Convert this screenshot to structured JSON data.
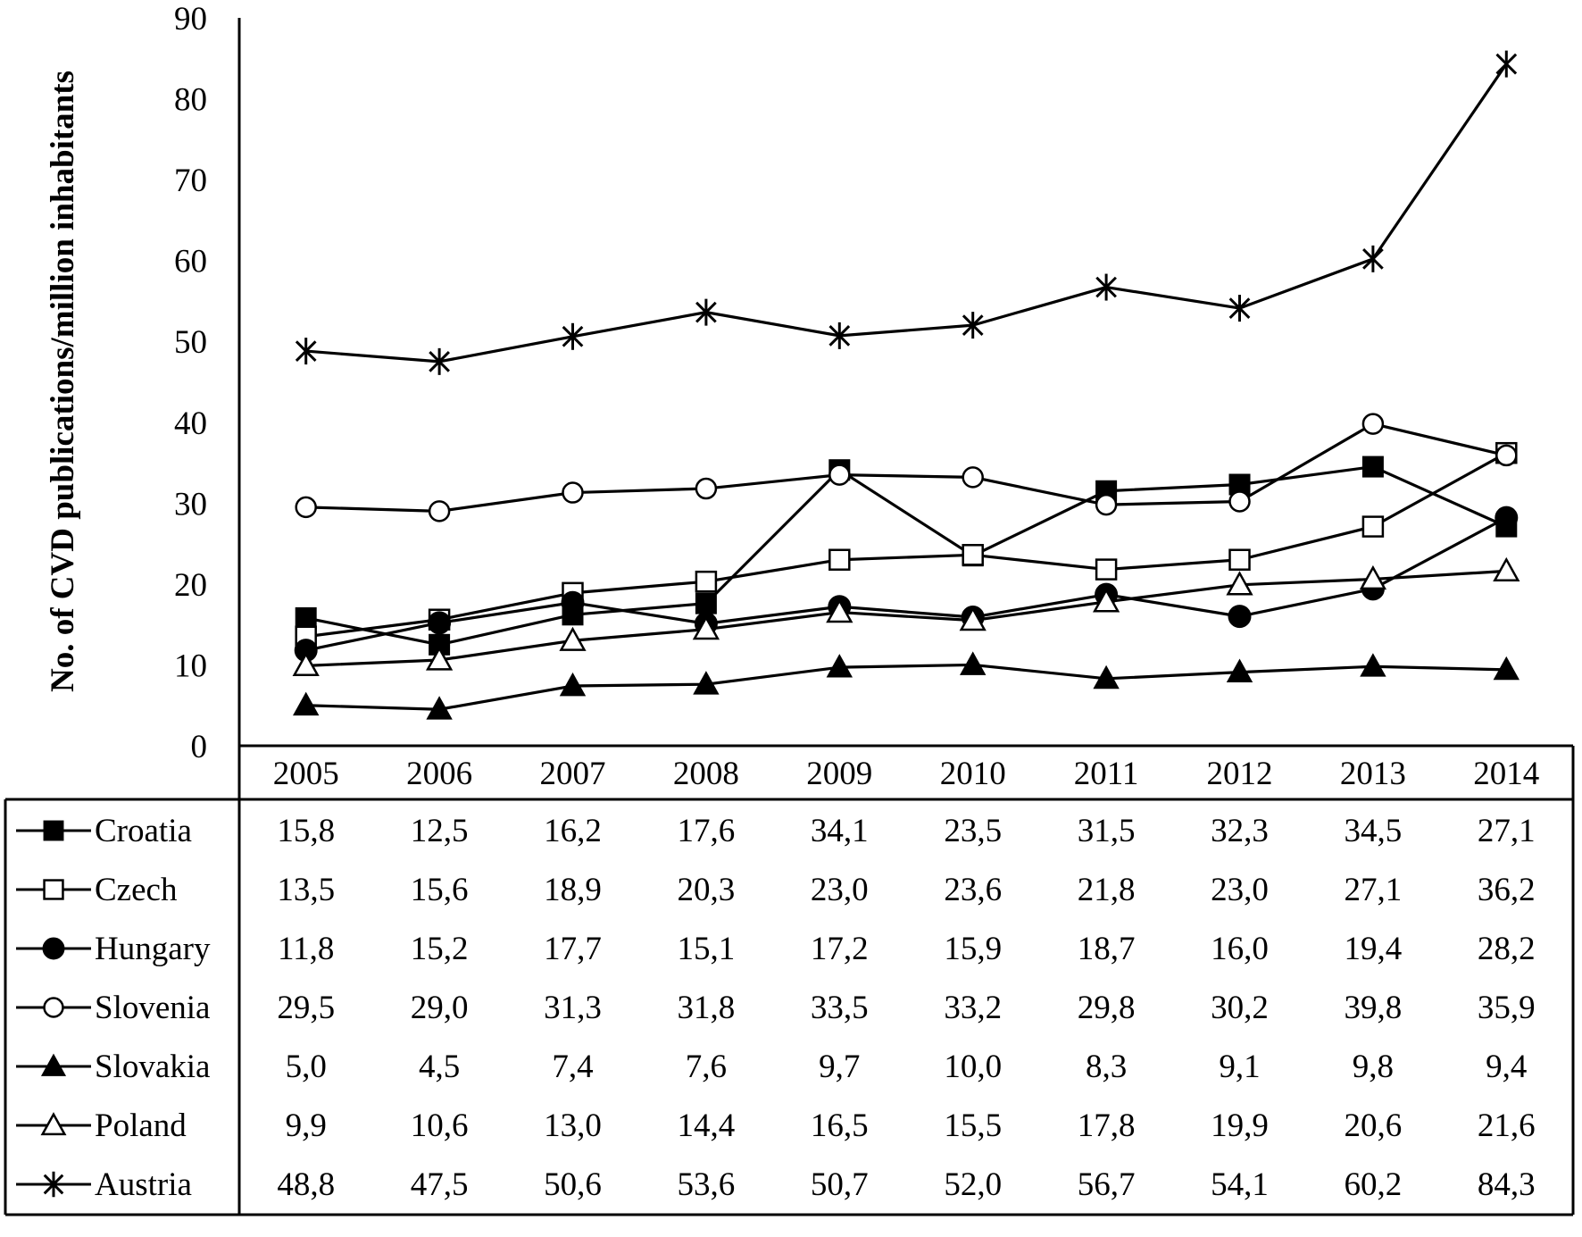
{
  "chart_data": {
    "type": "line",
    "title": "",
    "ylabel": "No. of CVD publications/million inhabitants",
    "xlabel": "",
    "ylim": [
      0,
      90
    ],
    "yticks": [
      0,
      10,
      20,
      30,
      40,
      50,
      60,
      70,
      80,
      90
    ],
    "grid": false,
    "categories": [
      "2005",
      "2006",
      "2007",
      "2008",
      "2009",
      "2010",
      "2011",
      "2012",
      "2013",
      "2014"
    ],
    "series": [
      {
        "name": "Croatia",
        "marker": "filled-square",
        "values": [
          15.8,
          12.5,
          16.2,
          17.6,
          34.1,
          23.5,
          31.5,
          32.3,
          34.5,
          27.1
        ],
        "labels": [
          "15,8",
          "12,5",
          "16,2",
          "17,6",
          "34,1",
          "23,5",
          "31,5",
          "32,3",
          "34,5",
          "27,1"
        ]
      },
      {
        "name": "Czech",
        "marker": "open-square",
        "values": [
          13.5,
          15.6,
          18.9,
          20.3,
          23.0,
          23.6,
          21.8,
          23.0,
          27.1,
          36.2
        ],
        "labels": [
          "13,5",
          "15,6",
          "18,9",
          "20,3",
          "23,0",
          "23,6",
          "21,8",
          "23,0",
          "27,1",
          "36,2"
        ]
      },
      {
        "name": "Hungary",
        "marker": "filled-circle",
        "values": [
          11.8,
          15.2,
          17.7,
          15.1,
          17.2,
          15.9,
          18.7,
          16.0,
          19.4,
          28.2
        ],
        "labels": [
          "11,8",
          "15,2",
          "17,7",
          "15,1",
          "17,2",
          "15,9",
          "18,7",
          "16,0",
          "19,4",
          "28,2"
        ]
      },
      {
        "name": "Slovenia",
        "marker": "open-circle",
        "values": [
          29.5,
          29.0,
          31.3,
          31.8,
          33.5,
          33.2,
          29.8,
          30.2,
          39.8,
          35.9
        ],
        "labels": [
          "29,5",
          "29,0",
          "31,3",
          "31,8",
          "33,5",
          "33,2",
          "29,8",
          "30,2",
          "39,8",
          "35,9"
        ]
      },
      {
        "name": "Slovakia",
        "marker": "filled-triangle",
        "values": [
          5.0,
          4.5,
          7.4,
          7.6,
          9.7,
          10.0,
          8.3,
          9.1,
          9.8,
          9.4
        ],
        "labels": [
          "5,0",
          "4,5",
          "7,4",
          "7,6",
          "9,7",
          "10,0",
          "8,3",
          "9,1",
          "9,8",
          "9,4"
        ]
      },
      {
        "name": "Poland",
        "marker": "open-triangle",
        "values": [
          9.9,
          10.6,
          13.0,
          14.4,
          16.5,
          15.5,
          17.8,
          19.9,
          20.6,
          21.6
        ],
        "labels": [
          "9,9",
          "10,6",
          "13,0",
          "14,4",
          "16,5",
          "15,5",
          "17,8",
          "19,9",
          "20,6",
          "21,6"
        ]
      },
      {
        "name": "Austria",
        "marker": "asterisk",
        "values": [
          48.8,
          47.5,
          50.6,
          53.6,
          50.7,
          52.0,
          56.7,
          54.1,
          60.2,
          84.3
        ],
        "labels": [
          "48,8",
          "47,5",
          "50,6",
          "53,6",
          "50,7",
          "52,0",
          "56,7",
          "54,1",
          "60,2",
          "84,3"
        ]
      }
    ]
  }
}
